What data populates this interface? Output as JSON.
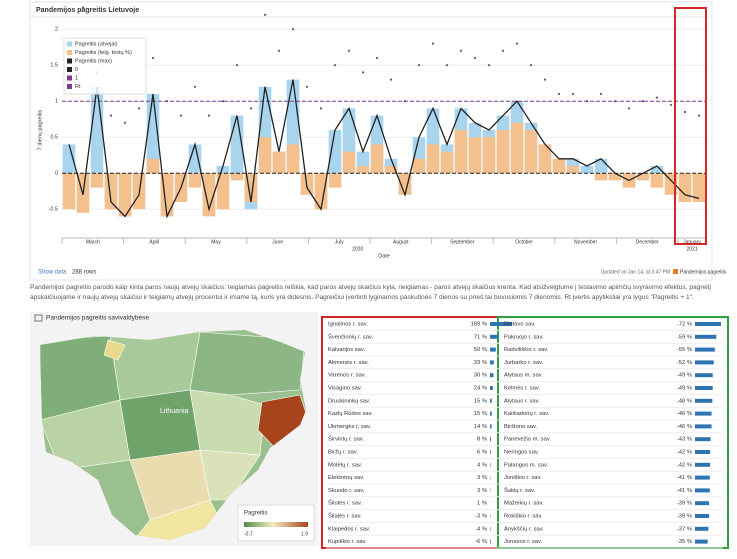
{
  "header": {
    "title": "Pandemijos pagreitis Lietuvoje"
  },
  "chart": {
    "type": "bar-line",
    "y_label": "7 dienų pagreitis",
    "x_label": "Date",
    "categories": [
      "March",
      "April",
      "May",
      "June",
      "July",
      "August",
      "September",
      "October",
      "November",
      "December",
      "January"
    ],
    "years": [
      "2020",
      "2021"
    ],
    "ylim": [
      -0.9,
      2.1
    ],
    "yticks": [
      -0.5,
      0,
      0.5,
      1,
      1.5,
      2
    ],
    "series": [
      {
        "name": "Pagreitis (atvejai)",
        "kind": "bar",
        "color": "#a9d4ee",
        "values": [
          0.4,
          -0.3,
          1.2,
          -0.4,
          -0.6,
          -0.3,
          1.1,
          -0.6,
          -0.2,
          0.4,
          -0.5,
          0.1,
          0.8,
          -0.5,
          1.2,
          0.3,
          1.3,
          -0.2,
          -0.5,
          0.6,
          0.9,
          0.3,
          0.8,
          0.2,
          -0.3,
          0.5,
          0.9,
          0.4,
          0.9,
          0.7,
          0.6,
          0.8,
          1.0,
          0.7,
          0.4,
          0.1,
          0.2,
          0.1,
          0.2,
          0.0,
          -0.1,
          0.0,
          0.1,
          -0.1,
          -0.3,
          -0.35
        ]
      },
      {
        "name": "Pagreitis (teig. testų %)",
        "kind": "bar",
        "color": "#f4c08e",
        "values": [
          -0.5,
          -0.55,
          -0.2,
          -0.5,
          -0.6,
          -0.5,
          0.2,
          -0.6,
          -0.4,
          -0.2,
          -0.6,
          -0.5,
          -0.1,
          -0.4,
          0.5,
          0.3,
          0.4,
          -0.3,
          -0.5,
          -0.2,
          0.3,
          0.1,
          0.4,
          0.1,
          -0.3,
          0.2,
          0.4,
          0.3,
          0.6,
          0.5,
          0.5,
          0.6,
          0.7,
          0.6,
          0.4,
          0.2,
          0.1,
          0.0,
          -0.1,
          -0.1,
          -0.2,
          -0.1,
          -0.2,
          -0.3,
          -0.4,
          -0.4
        ]
      },
      {
        "name": "Pagreitis (max)",
        "kind": "line",
        "color": "#222222",
        "values": [
          0.4,
          -0.3,
          1.2,
          -0.4,
          -0.6,
          -0.3,
          1.1,
          -0.6,
          -0.2,
          0.4,
          -0.5,
          0.1,
          0.8,
          -0.4,
          1.2,
          0.3,
          1.3,
          -0.2,
          -0.5,
          0.6,
          0.9,
          0.3,
          0.8,
          0.2,
          -0.3,
          0.5,
          0.9,
          0.4,
          0.9,
          0.7,
          0.6,
          0.8,
          1.0,
          0.7,
          0.4,
          0.2,
          0.2,
          0.1,
          0.2,
          0.0,
          -0.1,
          0.0,
          0.1,
          -0.1,
          -0.3,
          -0.35
        ]
      },
      {
        "name": "Rt",
        "kind": "dots",
        "color": "#7b3f8c",
        "values": [
          1.8,
          2.3,
          1.4,
          0.8,
          0.7,
          0.9,
          1.6,
          1.0,
          0.8,
          1.2,
          0.8,
          1.0,
          1.5,
          0.9,
          2.2,
          1.7,
          2.0,
          1.2,
          0.9,
          1.5,
          1.7,
          1.4,
          1.6,
          1.3,
          1.0,
          1.5,
          1.8,
          1.5,
          1.7,
          1.6,
          1.5,
          1.7,
          1.8,
          1.5,
          1.3,
          1.1,
          1.1,
          1.0,
          1.1,
          1.0,
          0.9,
          1.0,
          1.05,
          0.95,
          0.85,
          0.8
        ]
      }
    ],
    "reference_lines": [
      {
        "name": "0",
        "value": 0,
        "color": "#222222"
      },
      {
        "name": "1",
        "value": 1,
        "color": "#7b3f8c"
      }
    ]
  },
  "footer": {
    "show_data": "Show data",
    "rows": "288 rows",
    "updated": "Updated on Jan 14, at 3:47 PM",
    "source": "Pandemijos pagreitis"
  },
  "description": "Pandemijos pagreitis parodo kaip kinta paros naujų atvejų skaičius: teigiamas pagreitis reiškia, kad paros atvejų skaičius kyla, neigiamas - paros atvejų skaičius krenta. Kad atsižvelgtume į testavimo apimčių svyravimo efektus, pagreitį apskaičiuojame ir naujų atvejų skaičiui ir teigiamų atvejų procentui ir imame tą, kuris yra didesnis. Pagreičiui įvertinti lyginamos paskutinės 7 dienos su prieš tai buvusiomis 7 dienomis. Rt įvertis apytiksliai yra lygus \"Pagreitis + 1\".",
  "map": {
    "title": "Pandemijos pagreitis savivaldybėse",
    "country": "Lithuania",
    "legend_title": "Pagreitis",
    "legend_min": -0.7,
    "legend_max": 1.9
  },
  "table_left": {
    "rows": [
      {
        "name": "Ignalinos r. sav.",
        "value": 189,
        "label": "189 %"
      },
      {
        "name": "Švenčionių r. sav.",
        "value": 71,
        "label": "71 %"
      },
      {
        "name": "Kalvarijos sav.",
        "value": 50,
        "label": "50 %"
      },
      {
        "name": "Akmenės r. sav.",
        "value": 33,
        "label": "33 %"
      },
      {
        "name": "Varėnos r. sav.",
        "value": 30,
        "label": "30 %"
      },
      {
        "name": "Visagino sav.",
        "value": 24,
        "label": "24 %"
      },
      {
        "name": "Druskininkų sav.",
        "value": 15,
        "label": "15 %"
      },
      {
        "name": "Kazlų Rūdos sav.",
        "value": 15,
        "label": "15 %"
      },
      {
        "name": "Ukmergės r. sav.",
        "value": 14,
        "label": "14 %"
      },
      {
        "name": "Širvintų r. sav.",
        "value": 8,
        "label": "8 %"
      },
      {
        "name": "Biržų r. sav.",
        "value": 6,
        "label": "6 %"
      },
      {
        "name": "Molėtų r. sav.",
        "value": 4,
        "label": "4 %"
      },
      {
        "name": "Elektrėnų sav.",
        "value": 3,
        "label": "3 %"
      },
      {
        "name": "Skuodo r. sav.",
        "value": 3,
        "label": "3 %"
      },
      {
        "name": "Šilutės r. sav.",
        "value": 1,
        "label": "1 %"
      },
      {
        "name": "Šilalės r. sav.",
        "value": -3,
        "label": "-3 %"
      },
      {
        "name": "Klaipėdos r. sav.",
        "value": -4,
        "label": "-4 %"
      },
      {
        "name": "Kupiškio r. sav.",
        "value": -6,
        "label": "-6 %"
      }
    ]
  },
  "table_right": {
    "rows": [
      {
        "name": "Rietavo sav.",
        "value": -72,
        "label": "-72 %"
      },
      {
        "name": "Pakruojo r. sav.",
        "value": -59,
        "label": "-59 %"
      },
      {
        "name": "Radviliškio r. sav.",
        "value": -55,
        "label": "-55 %"
      },
      {
        "name": "Jurbarko r. sav.",
        "value": -52,
        "label": "-52 %"
      },
      {
        "name": "Alytaus m. sav.",
        "value": -49,
        "label": "-49 %"
      },
      {
        "name": "Kelmės r. sav.",
        "value": -49,
        "label": "-49 %"
      },
      {
        "name": "Alytaus r. sav.",
        "value": -48,
        "label": "-48 %"
      },
      {
        "name": "Kaišiadorių r. sav.",
        "value": -46,
        "label": "-46 %"
      },
      {
        "name": "Birštono sav.",
        "value": -46,
        "label": "-46 %"
      },
      {
        "name": "Panevėžio m. sav.",
        "value": -43,
        "label": "-43 %"
      },
      {
        "name": "Neringos sav.",
        "value": -42,
        "label": "-42 %"
      },
      {
        "name": "Palangos m. sav.",
        "value": -42,
        "label": "-42 %"
      },
      {
        "name": "Joniškio r. sav.",
        "value": -41,
        "label": "-41 %"
      },
      {
        "name": "Šakių r. sav.",
        "value": -41,
        "label": "-41 %"
      },
      {
        "name": "Mažeikių r. sav.",
        "value": -39,
        "label": "-39 %"
      },
      {
        "name": "Rokiškio r. sav.",
        "value": -39,
        "label": "-39 %"
      },
      {
        "name": "Anykščių r. sav.",
        "value": -37,
        "label": "-37 %"
      },
      {
        "name": "Jonavos r. sav.",
        "value": -35,
        "label": "-35 %"
      }
    ]
  }
}
